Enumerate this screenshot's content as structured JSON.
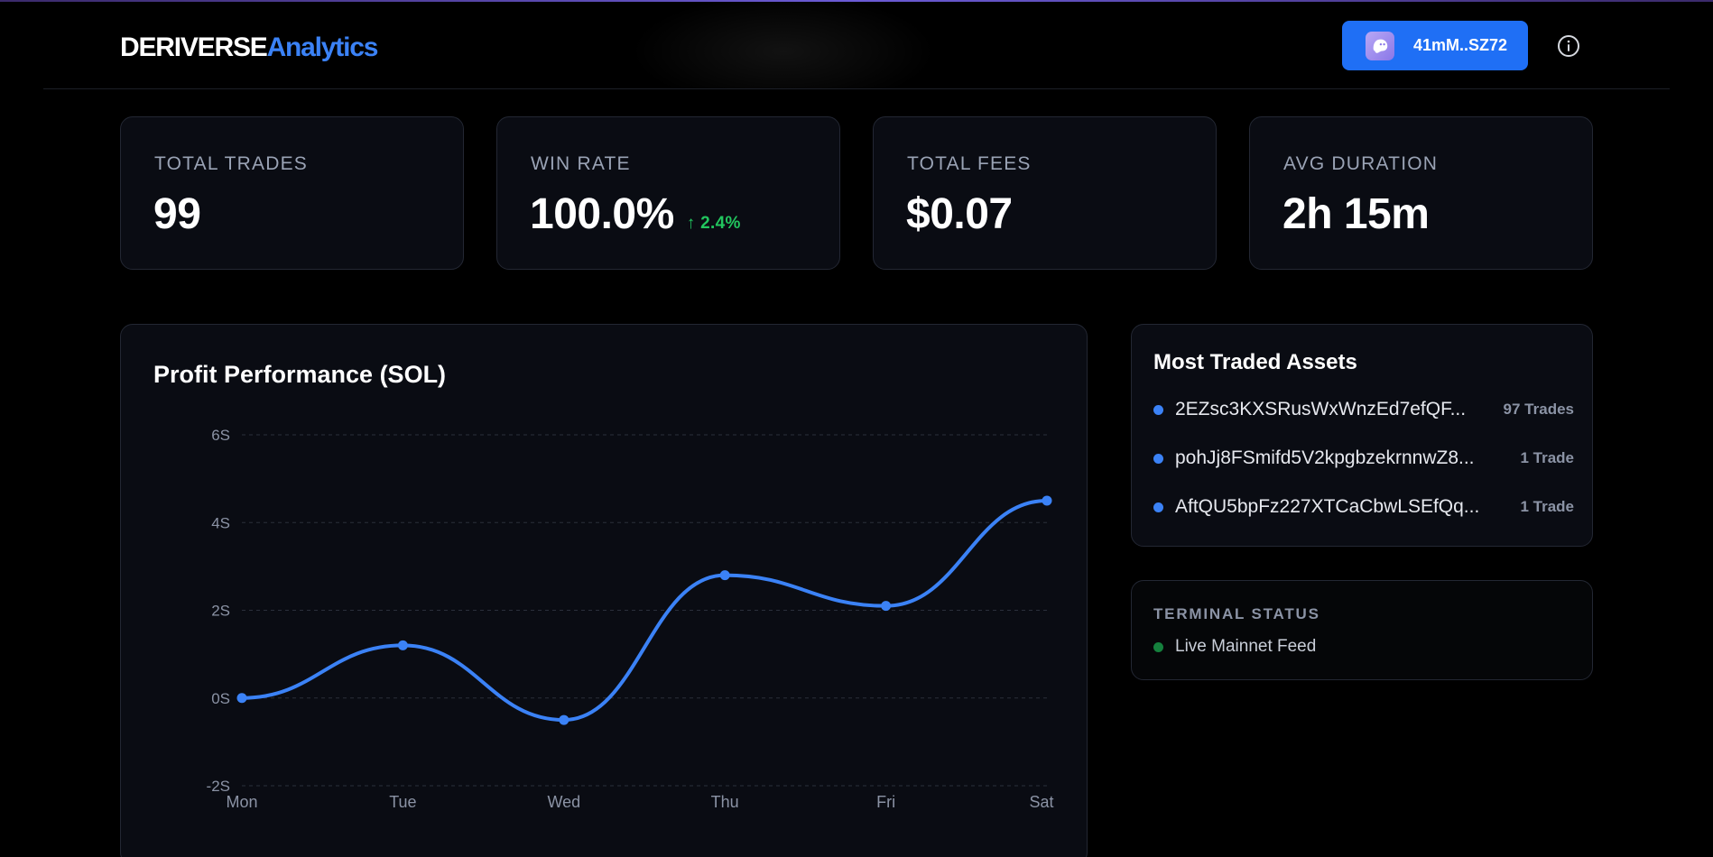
{
  "header": {
    "logo_brand": "DERIVERSE",
    "logo_accent": "Analytics",
    "wallet_address": "41mM..SZ72",
    "accent_color": "#3b82f6",
    "wallet_button_color": "#1f6ff5"
  },
  "stats": [
    {
      "label": "TOTAL TRADES",
      "value": "99"
    },
    {
      "label": "WIN RATE",
      "value": "100.0%",
      "delta": "↑ 2.4%"
    },
    {
      "label": "TOTAL FEES",
      "value": "$0.07"
    },
    {
      "label": "AVG DURATION",
      "value": "2h 15m"
    }
  ],
  "chart": {
    "title": "Profit Performance (SOL)"
  },
  "chart_data": {
    "type": "line",
    "title": "Profit Performance (SOL)",
    "categories": [
      "Mon",
      "Tue",
      "Wed",
      "Thu",
      "Fri",
      "Sat"
    ],
    "y_tick_labels": [
      "-2S",
      "0S",
      "2S",
      "4S",
      "6S"
    ],
    "y_ticks": [
      -2,
      0,
      2,
      4,
      6
    ],
    "ylim": [
      -2,
      6
    ],
    "series": [
      {
        "values": [
          0,
          1.2,
          -0.5,
          2.8,
          2.1,
          4.5
        ],
        "color": "#3b82f6"
      }
    ],
    "grid": true,
    "smooth": true
  },
  "assets": {
    "title": "Most Traded Assets",
    "items": [
      {
        "name": "2EZsc3KXSRusWxWnzEd7efQF...",
        "count": "97 Trades"
      },
      {
        "name": "pohJj8FSmifd5V2kpgbzekrnnwZ8...",
        "count": "1 Trade"
      },
      {
        "name": "AftQU5bpFz227XTCaCbwLSEfQq...",
        "count": "1 Trade"
      }
    ]
  },
  "status": {
    "label": "TERMINAL STATUS",
    "text": "Live Mainnet Feed",
    "color": "#15803d"
  },
  "icons": {
    "wallet": "ghost-icon",
    "info": "info-icon"
  }
}
